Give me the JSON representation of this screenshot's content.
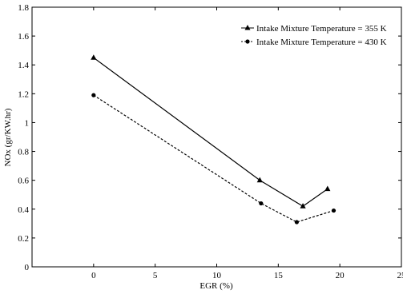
{
  "chart_data": {
    "type": "line",
    "title": "",
    "xlabel": "EGR (%)",
    "ylabel": "NOx (gr/KW.hr)",
    "xlim": [
      -5,
      25
    ],
    "ylim": [
      0,
      1.8
    ],
    "x_ticks": [
      0,
      5,
      10,
      15,
      20,
      25
    ],
    "y_ticks": [
      0,
      0.2,
      0.4,
      0.6,
      0.8,
      1,
      1.2,
      1.4,
      1.6,
      1.8
    ],
    "x_tick_labels": [
      "0",
      "5",
      "10",
      "15",
      "20",
      "25"
    ],
    "y_tick_labels": [
      "0",
      "0.2",
      "0.4",
      "0.6",
      "0.8",
      "1",
      "1.2",
      "1.4",
      "1.6",
      "1.8"
    ],
    "grid": false,
    "legend_position": "top-right",
    "series": [
      {
        "name": "Intake Mixture Temperature = 355 K",
        "marker": "triangle",
        "line_style": "solid",
        "color": "#000000",
        "x": [
          0,
          13.5,
          17,
          19
        ],
        "y": [
          1.45,
          0.6,
          0.42,
          0.54
        ]
      },
      {
        "name": "Intake Mixture Temperature = 430 K",
        "marker": "circle",
        "line_style": "dashed",
        "color": "#000000",
        "x": [
          0,
          13.6,
          16.5,
          19.5
        ],
        "y": [
          1.19,
          0.44,
          0.31,
          0.39
        ]
      }
    ]
  }
}
